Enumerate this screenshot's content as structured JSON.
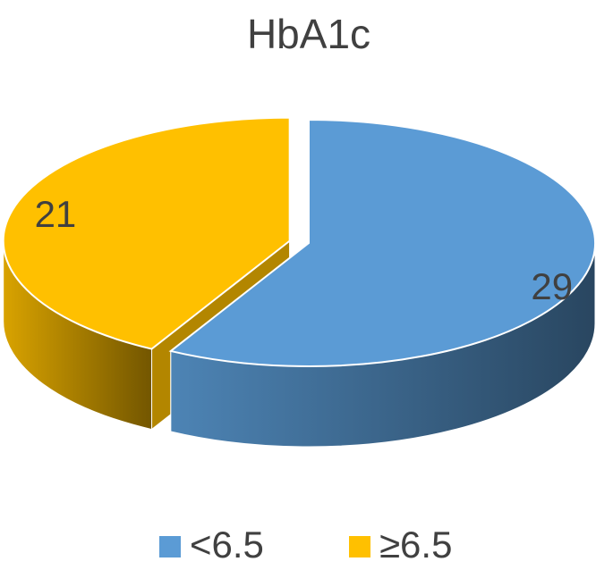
{
  "chart_data": {
    "type": "pie",
    "title": "HbA1c",
    "categories": [
      "<6.5",
      "≥6.5"
    ],
    "values": [
      29,
      21
    ],
    "colors": [
      "#5b9bd5",
      "#ffc000"
    ],
    "legend": "bottom"
  }
}
